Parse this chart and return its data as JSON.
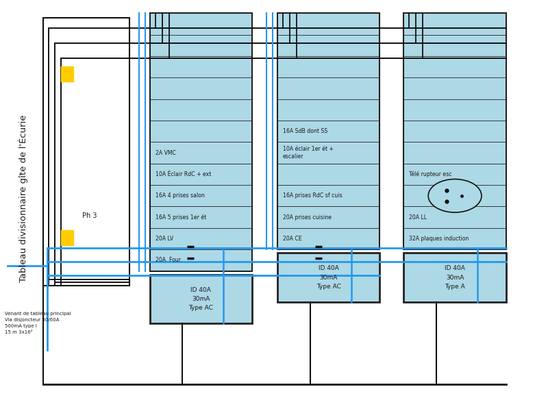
{
  "title": "Tableau divisionnaire gîte de l'Écurie",
  "bg_color": "#ffffff",
  "panel_fill": "#add8e6",
  "panel_edge": "#222222",
  "text_color": "#1a1a1a",
  "blue_wire": "#2299ee",
  "yellow_wire": "#ffcc00",
  "black_wire": "#111111",
  "col1_rows": [
    "",
    "",
    "",
    "",
    "",
    "",
    "2A VMC",
    "10A Éclair RdC + ext",
    "16A 4 prises salon",
    "16A 5 prises 1er ét",
    "20A LV",
    "20A  Four"
  ],
  "col2_rows": [
    "",
    "",
    "",
    "",
    "",
    "16A SdB dont SS",
    "10A éclair 1er ét +\nescalier",
    "",
    "16A prises RdC sf cuis",
    "20A prises cuisine",
    "20A CE"
  ],
  "col3_rows": [
    "",
    "",
    "",
    "",
    "",
    "",
    "",
    "Télé rupteur esc",
    "",
    "20A LL",
    "32A plaques induction"
  ],
  "col1_id": "ID 40A\n30mA\nType AC",
  "col2_id": "ID 40A\n30mA\nType AC",
  "col3_id": "ID 40A\n30mA\nType A",
  "left_text": "Venant de tableau principal\nVia disjoncteur 30/60A\n500mA type I\n15 m 3x16²",
  "ph3_label": "Ph 3"
}
